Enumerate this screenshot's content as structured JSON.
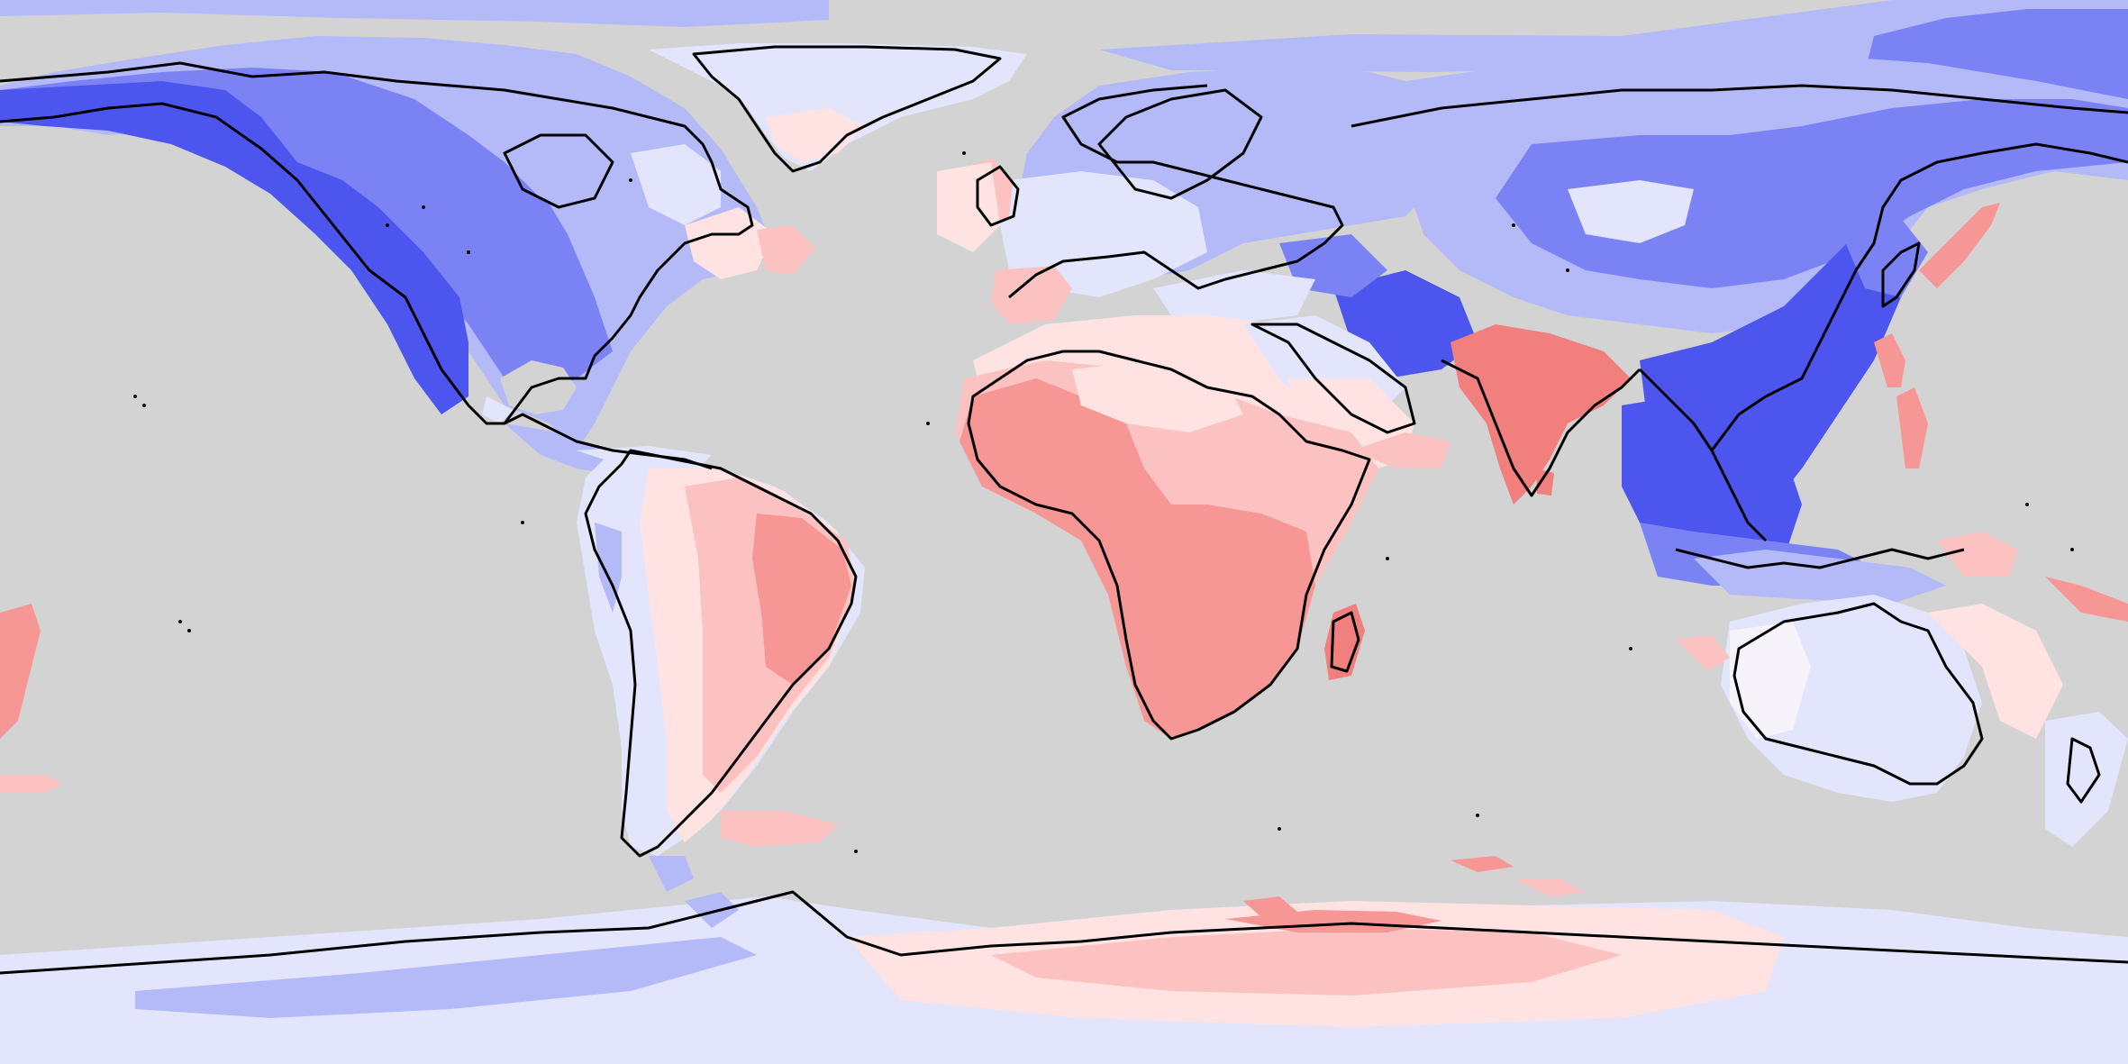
{
  "map": {
    "projection": "equirectangular",
    "extent": {
      "lon": [
        -180,
        180
      ],
      "lat": [
        -90,
        90
      ]
    },
    "colors": {
      "ocean": "#d3d3d3",
      "blue_strong": "#4c55ee",
      "blue_mid": "#7b83f4",
      "blue_light": "#b4b9f8",
      "blue_pale": "#e3e5fc",
      "neutral": "#f6f4fa",
      "red_pale": "#ffe3e2",
      "red_light": "#fbc2c1",
      "red_mid": "#f69795",
      "red_strong": "#f07f7d",
      "coastline": "#000000"
    },
    "regions": [
      "north-america",
      "greenland",
      "south-america",
      "europe",
      "africa",
      "middle-east",
      "india",
      "russia-asia",
      "east-asia",
      "southeast-asia",
      "australia",
      "antarctica"
    ]
  }
}
